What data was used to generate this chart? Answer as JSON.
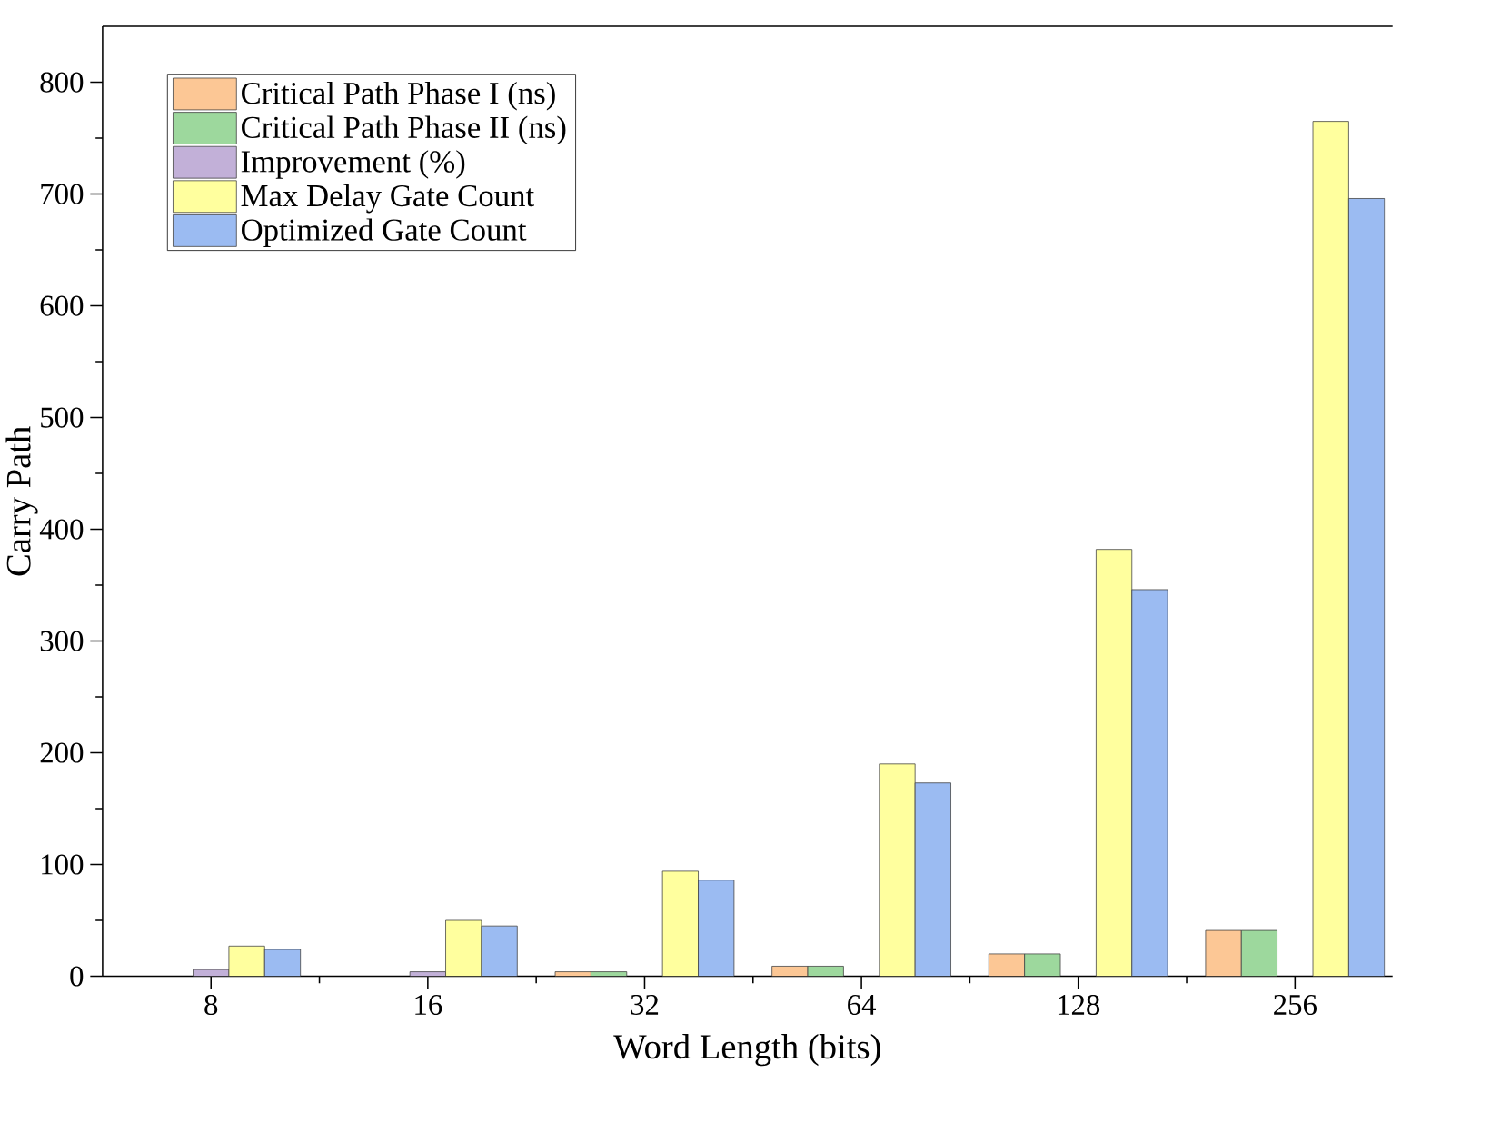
{
  "chart_data": {
    "type": "bar",
    "xlabel": "Word Length (bits)",
    "ylabel": "Carry Path",
    "categories": [
      "8",
      "16",
      "32",
      "64",
      "128",
      "256"
    ],
    "series": [
      {
        "name": "Critical Path Phase I (ns)",
        "color": "#fcc795",
        "values": [
          null,
          null,
          4,
          9,
          20,
          41
        ]
      },
      {
        "name": "Critical Path Phase II (ns)",
        "color": "#9dd89d",
        "values": [
          null,
          null,
          4,
          9,
          20,
          41
        ]
      },
      {
        "name": "Improvement (%)",
        "color": "#c2b0d8",
        "values": [
          6,
          4,
          null,
          null,
          null,
          null
        ]
      },
      {
        "name": "Max Delay Gate Count",
        "color": "#ffff9e",
        "values": [
          27,
          50,
          94,
          190,
          382,
          765
        ]
      },
      {
        "name": "Optimized Gate Count",
        "color": "#9bbbf2",
        "values": [
          24,
          45,
          86,
          173,
          346,
          696
        ]
      }
    ],
    "ylim": [
      0,
      850
    ],
    "yticks": [
      0,
      100,
      200,
      300,
      400,
      500,
      600,
      700,
      800
    ],
    "legend": "top left"
  }
}
